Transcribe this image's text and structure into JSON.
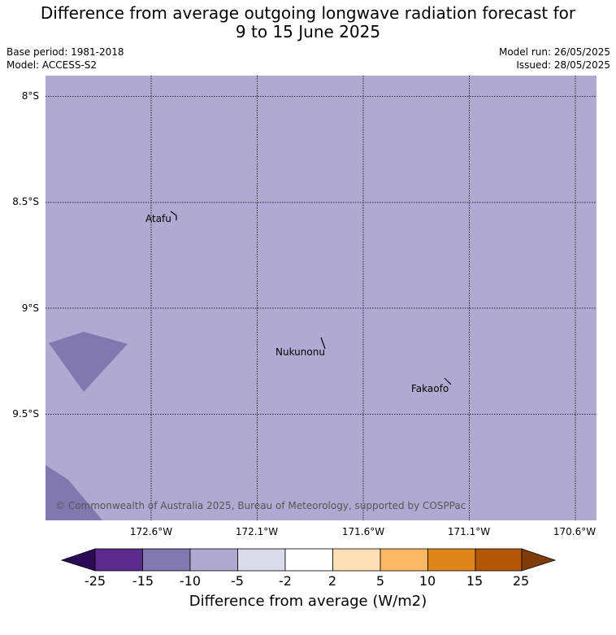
{
  "title_line1": "Difference from average outgoing longwave radiation forecast for",
  "title_line2": "9 to 15 June 2025",
  "base_period": "Base period: 1981-2018",
  "model": "Model: ACCESS-S2",
  "model_run": "Model run: 26/05/2025",
  "issued": "Issued: 28/05/2025",
  "copyright": "© Commonwealth of Australia 2025, Bureau of Meteorology, supported by COSPPac",
  "lat_labels": [
    "8°S",
    "8.5°S",
    "9°S",
    "9.5°S"
  ],
  "lon_labels": [
    "172.6°W",
    "172.1°W",
    "171.6°W",
    "171.1°W",
    "170.6°W"
  ],
  "places": [
    "Atafu",
    "Nukunonu",
    "Fakaofo"
  ],
  "colors": {
    "background_field": "#b0aad2",
    "darker_field": "#8278b0"
  },
  "colorbar": {
    "title": "Difference from average (W/m2)",
    "ticks": [
      "-25",
      "-15",
      "-10",
      "-5",
      "-2",
      "2",
      "5",
      "10",
      "15",
      "25"
    ],
    "colors": [
      "#2d0a55",
      "#5a2a8c",
      "#8278b0",
      "#b0aad2",
      "#dadaeb",
      "#ffffff",
      "#ffdfb6",
      "#fdb863",
      "#e08518",
      "#b35806",
      "#7f3b08"
    ]
  }
}
